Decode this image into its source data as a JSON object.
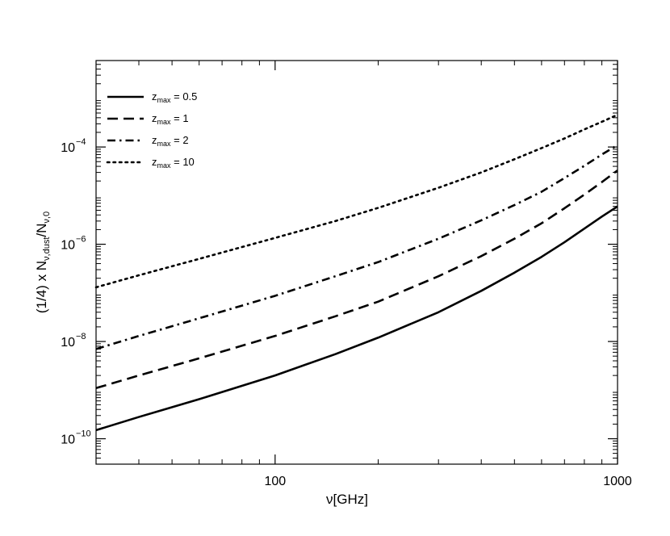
{
  "chart_data": {
    "type": "line",
    "title": "",
    "xlabel": "ν[GHz]",
    "ylabel": {
      "prefix": "(1/4) x N",
      "sub1": "ν,dust",
      "mid": "/N",
      "sub2": "ν,0"
    },
    "xscale": "log",
    "yscale": "log",
    "xlim": [
      30,
      1000
    ],
    "ylim": [
      3e-11,
      0.006
    ],
    "x_ticks": [
      {
        "value": 100,
        "label": "100"
      },
      {
        "value": 1000,
        "label": "1000"
      }
    ],
    "y_ticks": [
      {
        "value": 1e-10,
        "base": "10",
        "exp": "−10"
      },
      {
        "value": 1e-08,
        "base": "10",
        "exp": "−8"
      },
      {
        "value": 1e-06,
        "base": "10",
        "exp": "−6"
      },
      {
        "value": 0.0001,
        "base": "10",
        "exp": "−4"
      }
    ],
    "grid": false,
    "legend_position": "top-left",
    "series": [
      {
        "name": "z_max = 0.5",
        "label": {
          "z": "z",
          "sub": "max",
          "rest": " = 0.5"
        },
        "line_style": "solid",
        "color": "#000000",
        "x": [
          30,
          40,
          60,
          100,
          150,
          200,
          300,
          400,
          500,
          600,
          700,
          800,
          900,
          1000
        ],
        "y": [
          1.5e-10,
          2.8e-10,
          6.5e-10,
          2e-09,
          5.5e-09,
          1.2e-08,
          4e-08,
          1.1e-07,
          2.6e-07,
          5.5e-07,
          1.1e-06,
          2.1e-06,
          3.7e-06,
          6e-06
        ]
      },
      {
        "name": "z_max = 1",
        "label": {
          "z": "z",
          "sub": "max",
          "rest": " = 1"
        },
        "line_style": "dashed",
        "color": "#000000",
        "x": [
          30,
          40,
          60,
          100,
          150,
          200,
          300,
          400,
          500,
          600,
          700,
          800,
          900,
          1000
        ],
        "y": [
          1.1e-09,
          2e-09,
          4.5e-09,
          1.3e-08,
          3.3e-08,
          6.6e-08,
          2.2e-07,
          5.7e-07,
          1.3e-06,
          2.7e-06,
          5.5e-06,
          1.05e-05,
          1.9e-05,
          3.3e-05
        ]
      },
      {
        "name": "z_max = 2",
        "label": {
          "z": "z",
          "sub": "max",
          "rest": " = 2"
        },
        "line_style": "dash-dot",
        "color": "#000000",
        "x": [
          30,
          40,
          60,
          100,
          150,
          200,
          300,
          400,
          500,
          600,
          700,
          800,
          900,
          1000
        ],
        "y": [
          7e-09,
          1.3e-08,
          3e-08,
          8.7e-08,
          2.2e-07,
          4.3e-07,
          1.3e-06,
          3.1e-06,
          6.4e-06,
          1.2e-05,
          2.3e-05,
          4.1e-05,
          7e-05,
          0.00011
        ]
      },
      {
        "name": "z_max = 10",
        "label": {
          "z": "z",
          "sub": "max",
          "rest": " = 10"
        },
        "line_style": "dotted",
        "color": "#000000",
        "x": [
          30,
          40,
          60,
          100,
          150,
          200,
          300,
          400,
          500,
          600,
          700,
          800,
          900,
          1000
        ],
        "y": [
          1.3e-07,
          2.3e-07,
          5e-07,
          1.35e-06,
          3e-06,
          5.6e-06,
          1.45e-05,
          3e-05,
          5.6e-05,
          9.5e-05,
          0.00015,
          0.00023,
          0.00033,
          0.00046
        ]
      }
    ]
  }
}
